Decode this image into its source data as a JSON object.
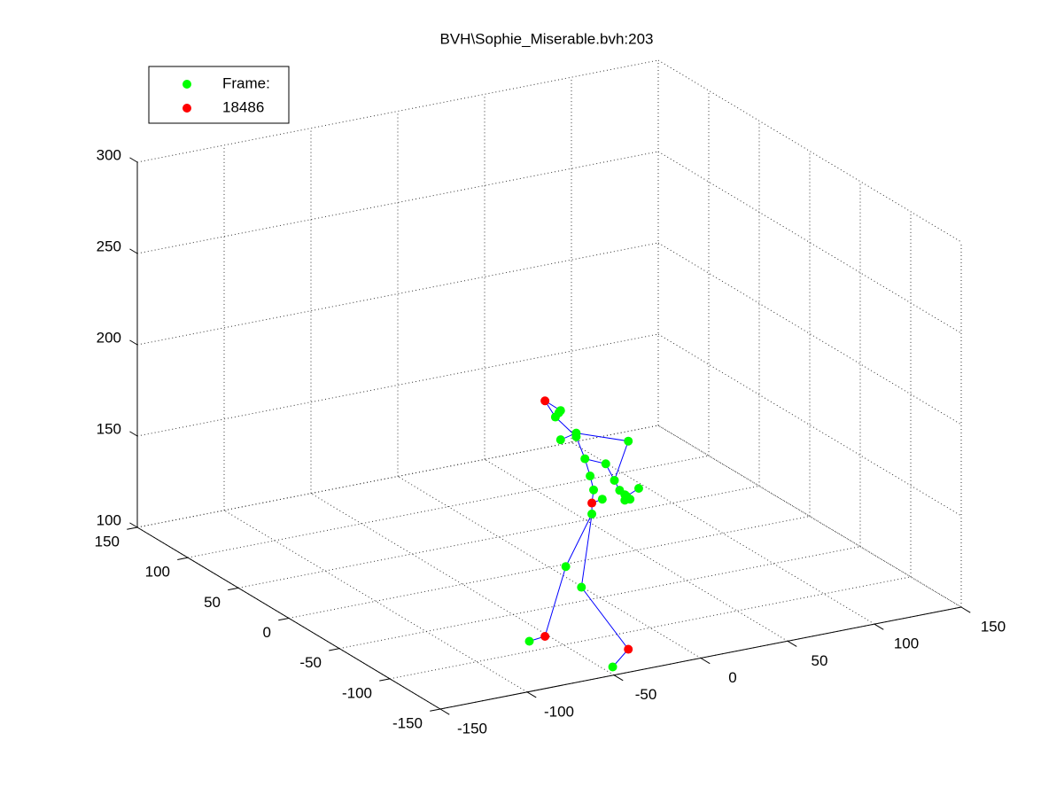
{
  "chart_data": {
    "type": "scatter3d",
    "title": "BVH\\Sophie_Miserable.bvh:203",
    "xlim": [
      -150,
      150
    ],
    "xticks": [
      -150,
      -100,
      -50,
      0,
      50,
      100,
      150
    ],
    "ylim": [
      -150,
      150
    ],
    "yticks": [
      -150,
      -100,
      -50,
      0,
      50,
      100,
      150
    ],
    "zlim": [
      100,
      300
    ],
    "zticks": [
      100,
      150,
      200,
      250,
      300
    ],
    "grid": true,
    "legend": "upper-left",
    "series": [
      {
        "name": "Frame:",
        "color": "#00ff00",
        "x": [
          -90,
          -42,
          -69,
          -60,
          -54,
          -48,
          -53,
          -55,
          -58,
          -46,
          -63,
          -63,
          -72,
          -33,
          -73,
          -75,
          -72,
          -41,
          -38,
          -34,
          -32,
          -35,
          -27,
          -35
        ],
        "y": [
          -135,
          -135,
          -135,
          -135,
          -135,
          -135,
          -135,
          -135,
          -135,
          -135,
          -135,
          -135,
          -135,
          -135,
          -135,
          -135,
          -135,
          -135,
          -135,
          -135,
          -135,
          -135,
          -135,
          -135
        ],
        "z": [
          121,
          98,
          158,
          145,
          184,
          191,
          197,
          205,
          215,
          210,
          230,
          228,
          228,
          220,
          243,
          241,
          244,
          200,
          194,
          190,
          188,
          188,
          193,
          191
        ]
      },
      {
        "name": "18486",
        "color": "#ff0000",
        "x": [
          -81,
          -54,
          -81,
          -33
        ],
        "y": [
          -135,
          -135,
          -135,
          -135
        ],
        "z": [
          251,
          190,
          122,
          106
        ]
      },
      {
        "type": "line",
        "color": "#0000ff",
        "x": [
          -90,
          -81,
          -69,
          -54,
          -60,
          -33,
          -42,
          null,
          -54,
          -54,
          -53,
          -55,
          -58,
          -63,
          -75,
          -81,
          -72,
          -73,
          null,
          -72,
          -63,
          -33,
          -41,
          -38,
          -34,
          -27,
          null,
          -58,
          -46,
          -41,
          null,
          -54,
          -48
        ],
        "y": [
          -135,
          -135,
          -135,
          -135,
          -135,
          -135,
          -135,
          null,
          -135,
          -135,
          -135,
          -135,
          -135,
          -135,
          -135,
          -135,
          -135,
          -135,
          null,
          -135,
          -135,
          -135,
          -135,
          -135,
          -135,
          -135,
          null,
          -135,
          -135,
          -135,
          null,
          -135,
          -135
        ],
        "z": [
          121,
          122,
          158,
          184,
          145,
          106,
          98,
          null,
          184,
          190,
          197,
          205,
          215,
          228,
          241,
          251,
          244,
          243,
          null,
          228,
          230,
          220,
          200,
          194,
          190,
          193,
          null,
          215,
          210,
          200,
          null,
          190,
          191
        ]
      }
    ]
  }
}
